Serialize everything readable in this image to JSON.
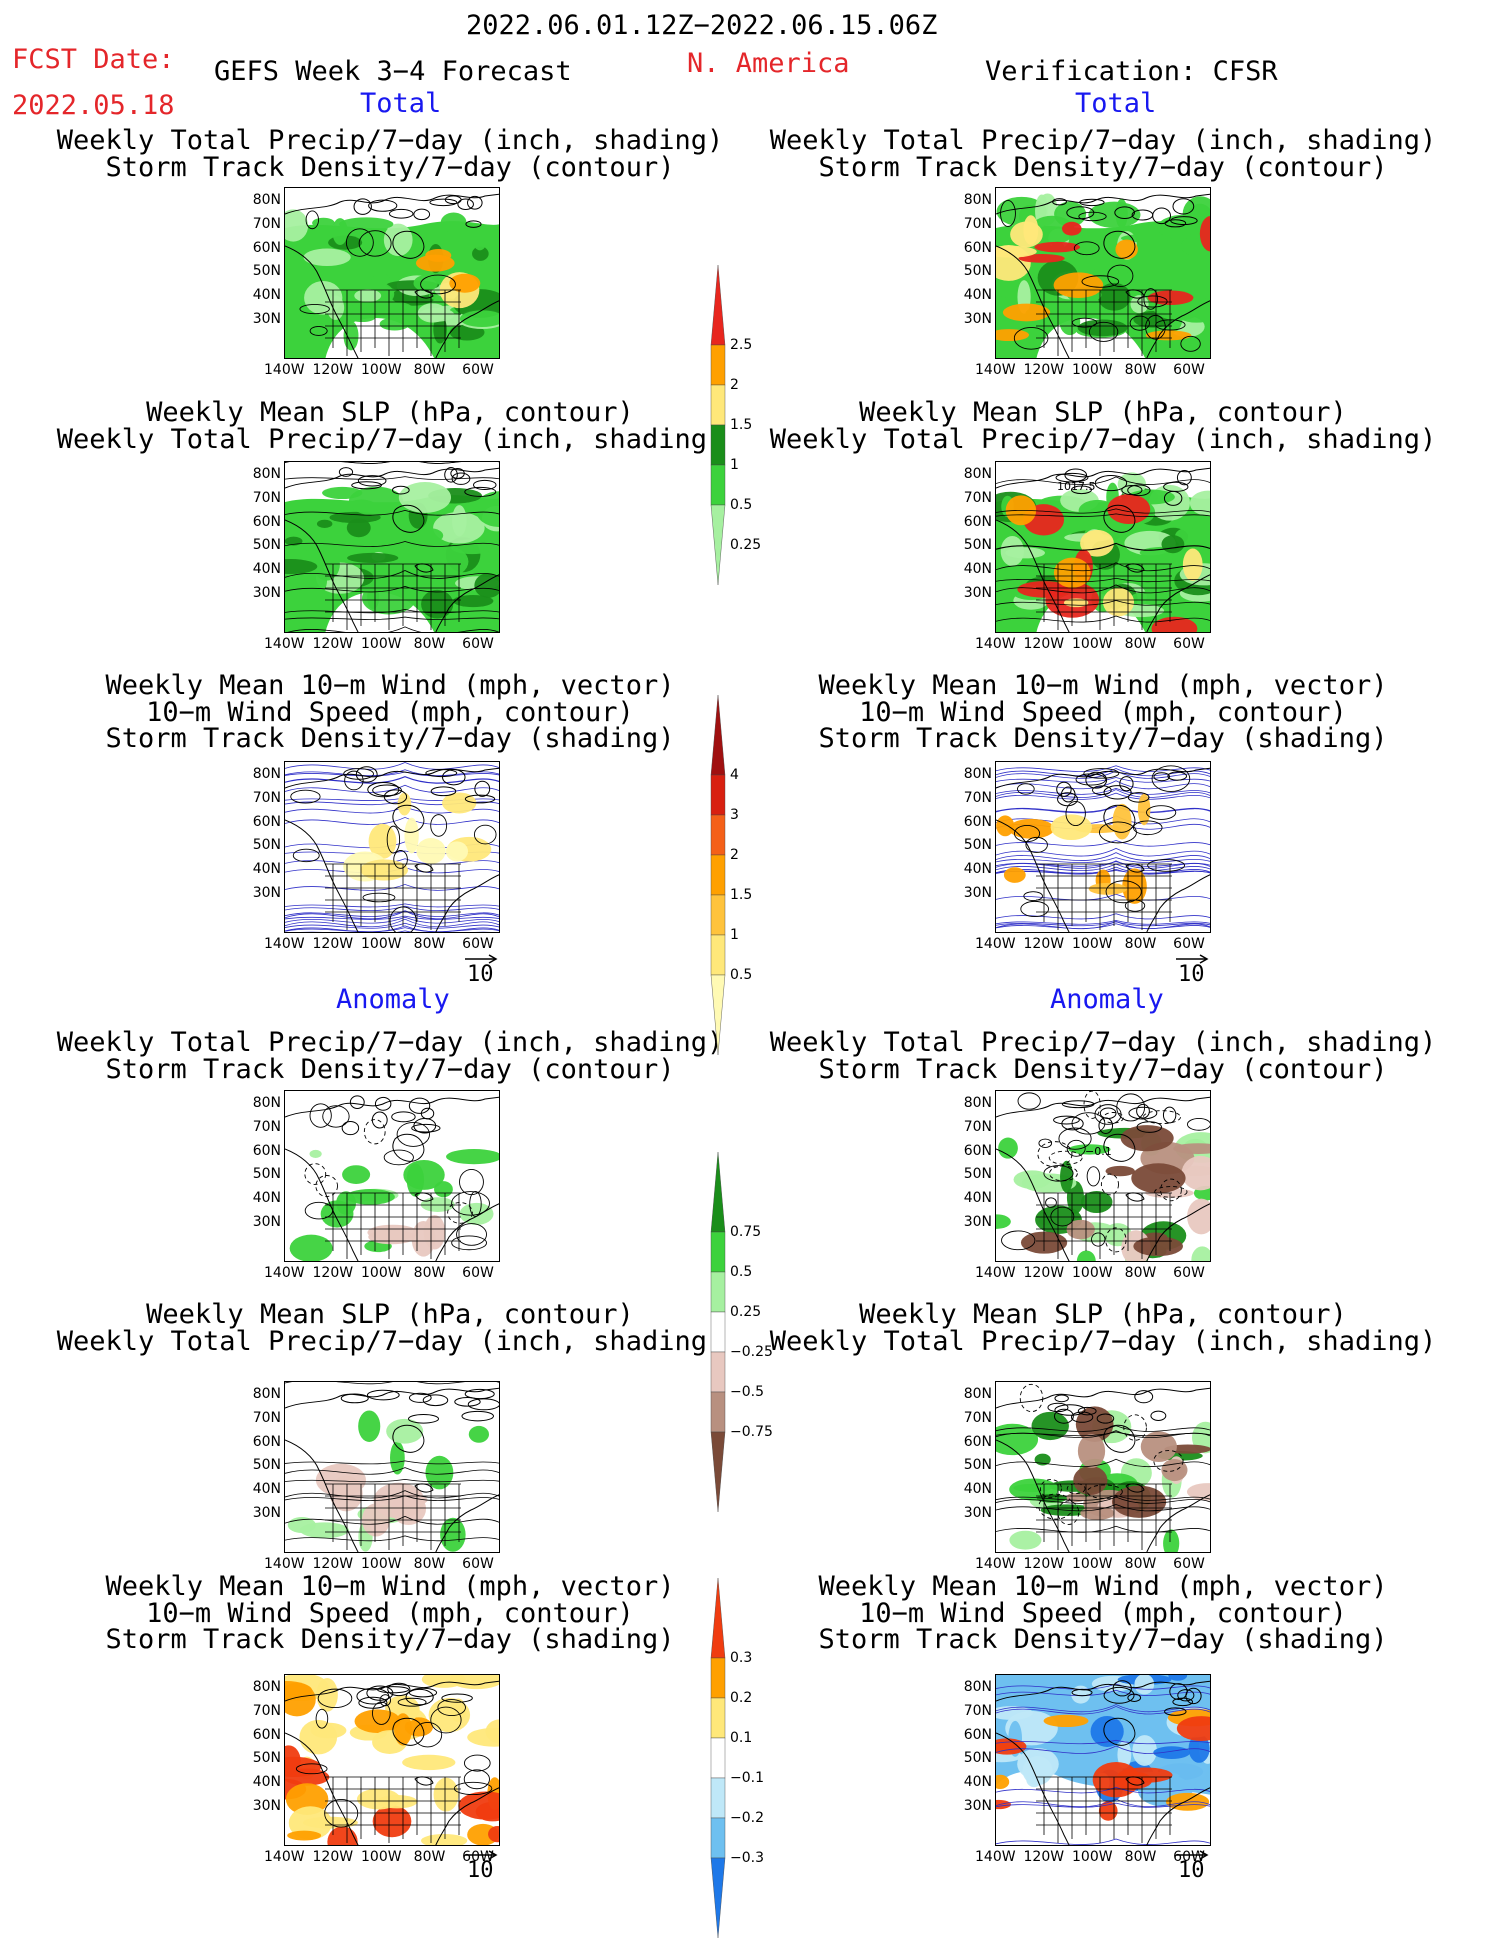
{
  "header": {
    "date_range": "2022.06.01.12Z−2022.06.15.06Z",
    "fcst_label": "FCST Date:",
    "fcst_date": "2022.05.18",
    "product": "GEFS Week 3−4 Forecast",
    "region": "N. America",
    "verification": "Verification: CFSR"
  },
  "sections": {
    "total": "Total",
    "anomaly": "Anomaly"
  },
  "titles": {
    "precip_storm": [
      "Weekly Total Precip/7−day (inch, shading)",
      "Storm Track Density/7−day (contour)"
    ],
    "slp_precip": [
      "Weekly Mean SLP (hPa, contour)",
      "Weekly Total Precip/7−day (inch, shading)"
    ],
    "wind_storm": [
      "Weekly Mean 10−m Wind (mph, vector)",
      "10−m Wind Speed (mph, contour)",
      "Storm Track Density/7−day (shading)"
    ]
  },
  "lat_labels": [
    "80N",
    "70N",
    "60N",
    "50N",
    "40N",
    "30N"
  ],
  "lon_labels": [
    "140W",
    "120W",
    "100W",
    "80W",
    "60W"
  ],
  "vector_ref": "10",
  "map_annotations": {
    "slp_contour": "1017.5",
    "neg_contour": "−0.1"
  },
  "colorbars": {
    "precip_total": {
      "labels": [
        "2.5",
        "2",
        "1.5",
        "1",
        "0.5",
        "0.25"
      ],
      "colors": [
        "#e8261e",
        "#ffa000",
        "#ffe87a",
        "#1a8e1a",
        "#3cd23c",
        "#a6f0a0"
      ]
    },
    "storm_total": {
      "labels": [
        "4",
        "3",
        "2",
        "1.5",
        "1",
        "0.5"
      ],
      "colors": [
        "#a01010",
        "#d82010",
        "#f46018",
        "#ffa000",
        "#ffc33c",
        "#ffe87a",
        "#fffab4"
      ]
    },
    "precip_anom": {
      "labels": [
        "0.75",
        "0.5",
        "0.25",
        "−0.25",
        "−0.5",
        "−0.75"
      ],
      "colors": [
        "#1a8e1a",
        "#3cd23c",
        "#a6f0a0",
        "#ffffff",
        "#e8c8c0",
        "#b89080",
        "#7a4a38"
      ]
    },
    "storm_anom": {
      "labels": [
        "0.3",
        "0.2",
        "0.1",
        "−0.1",
        "−0.2",
        "−0.3"
      ],
      "colors": [
        "#f03c10",
        "#ffa000",
        "#ffe87a",
        "#ffffff",
        "#bfe8f8",
        "#6ec0f0",
        "#1e78e8"
      ]
    }
  }
}
